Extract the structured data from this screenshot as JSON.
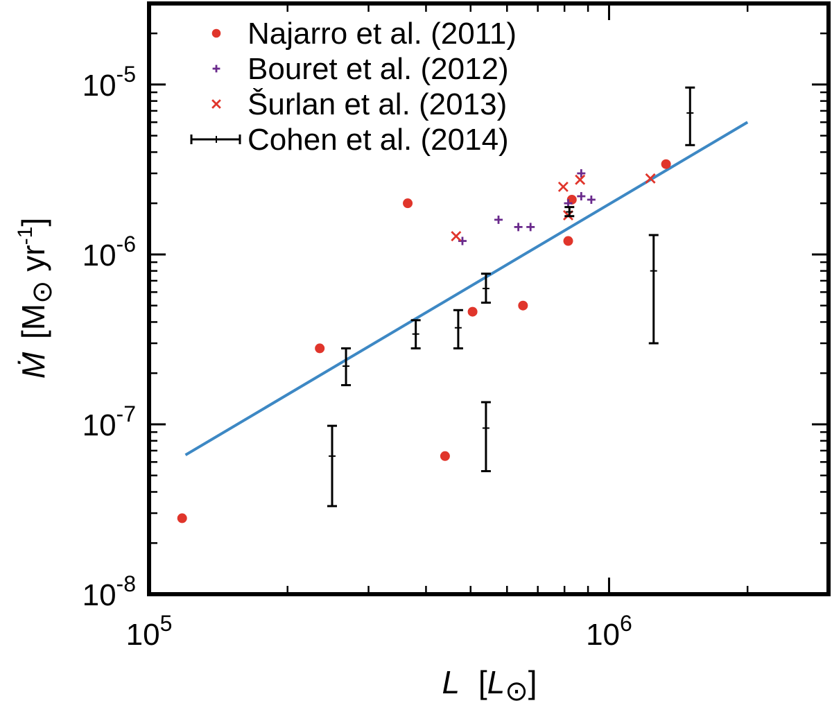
{
  "chart_data": {
    "type": "scatter",
    "title": "",
    "xlabel": {
      "main": "L",
      "open": "[",
      "sym": "L",
      "sub": "⊙",
      "close": "]"
    },
    "ylabel": {
      "main": "Ṁ",
      "rest1": "[M",
      "sub": "⊙",
      "rest2": " yr",
      "sup": "-1",
      "close": "]"
    },
    "x_scale": "log",
    "y_scale": "log",
    "xlim": [
      100000,
      3000000
    ],
    "ylim": [
      1e-08,
      3e-05
    ],
    "x_major_ticks": [
      {
        "value": 100000,
        "base": "10",
        "exp": "5"
      },
      {
        "value": 1000000,
        "base": "10",
        "exp": "6"
      }
    ],
    "y_major_ticks": [
      {
        "value": 1e-08,
        "base": "10",
        "exp": "-8"
      },
      {
        "value": 1e-07,
        "base": "10",
        "exp": "-7"
      },
      {
        "value": 1e-06,
        "base": "10",
        "exp": "-6"
      },
      {
        "value": 1e-05,
        "base": "10",
        "exp": "-5"
      }
    ],
    "legend_position": "top-left",
    "series": [
      {
        "name": "Najarro et al. (2011)",
        "marker": "circle",
        "color": "#e0352b",
        "points": [
          {
            "x": 118000,
            "y": 2.8e-08
          },
          {
            "x": 235000,
            "y": 2.8e-07
          },
          {
            "x": 365000,
            "y": 2e-06
          },
          {
            "x": 440000,
            "y": 6.5e-08
          },
          {
            "x": 505000,
            "y": 4.6e-07
          },
          {
            "x": 650000,
            "y": 5e-07
          },
          {
            "x": 815000,
            "y": 1.2e-06
          },
          {
            "x": 830000,
            "y": 2.1e-06
          },
          {
            "x": 1330000,
            "y": 3.4e-06
          }
        ]
      },
      {
        "name": "Bouret et al. (2012)",
        "marker": "plus",
        "color": "#6a2a8c",
        "points": [
          {
            "x": 480000,
            "y": 1.2e-06
          },
          {
            "x": 575000,
            "y": 1.6e-06
          },
          {
            "x": 635000,
            "y": 1.45e-06
          },
          {
            "x": 675000,
            "y": 1.45e-06
          },
          {
            "x": 815000,
            "y": 2e-06
          },
          {
            "x": 870000,
            "y": 3e-06
          },
          {
            "x": 870000,
            "y": 2.2e-06
          },
          {
            "x": 915000,
            "y": 2.1e-06
          }
        ]
      },
      {
        "name": "Šurlan et al. (2013)",
        "marker": "cross",
        "color": "#e0352b",
        "points": [
          {
            "x": 465000,
            "y": 1.28e-06
          },
          {
            "x": 795000,
            "y": 2.5e-06
          },
          {
            "x": 815000,
            "y": 1.7e-06
          },
          {
            "x": 865000,
            "y": 2.75e-06
          },
          {
            "x": 1230000,
            "y": 2.8e-06
          }
        ]
      },
      {
        "name": "Cohen et al. (2014)",
        "marker": "errorbar",
        "color": "#000000",
        "points": [
          {
            "x": 250000,
            "y": 6.5e-08,
            "ylow": 3.3e-08,
            "yhigh": 9.8e-08
          },
          {
            "x": 268000,
            "y": 2.2e-07,
            "ylow": 1.7e-07,
            "yhigh": 2.8e-07
          },
          {
            "x": 380000,
            "y": 3.4e-07,
            "ylow": 2.8e-07,
            "yhigh": 4.1e-07
          },
          {
            "x": 470000,
            "y": 3.7e-07,
            "ylow": 2.8e-07,
            "yhigh": 4.7e-07
          },
          {
            "x": 540000,
            "y": 6.3e-07,
            "ylow": 5.2e-07,
            "yhigh": 7.7e-07
          },
          {
            "x": 540000,
            "y": 9.5e-08,
            "ylow": 5.3e-08,
            "yhigh": 1.35e-07
          },
          {
            "x": 820000,
            "y": 1.78e-06,
            "ylow": 1.68e-06,
            "yhigh": 1.9e-06
          },
          {
            "x": 1250000,
            "y": 8e-07,
            "ylow": 3e-07,
            "yhigh": 1.3e-06
          },
          {
            "x": 1500000,
            "y": 6.8e-06,
            "ylow": 4.4e-06,
            "yhigh": 9.6e-06
          }
        ]
      }
    ],
    "fit_line": {
      "color": "#3d88c4",
      "points": [
        {
          "x": 120000,
          "y": 6.6e-08
        },
        {
          "x": 2000000,
          "y": 6e-06
        }
      ]
    }
  }
}
